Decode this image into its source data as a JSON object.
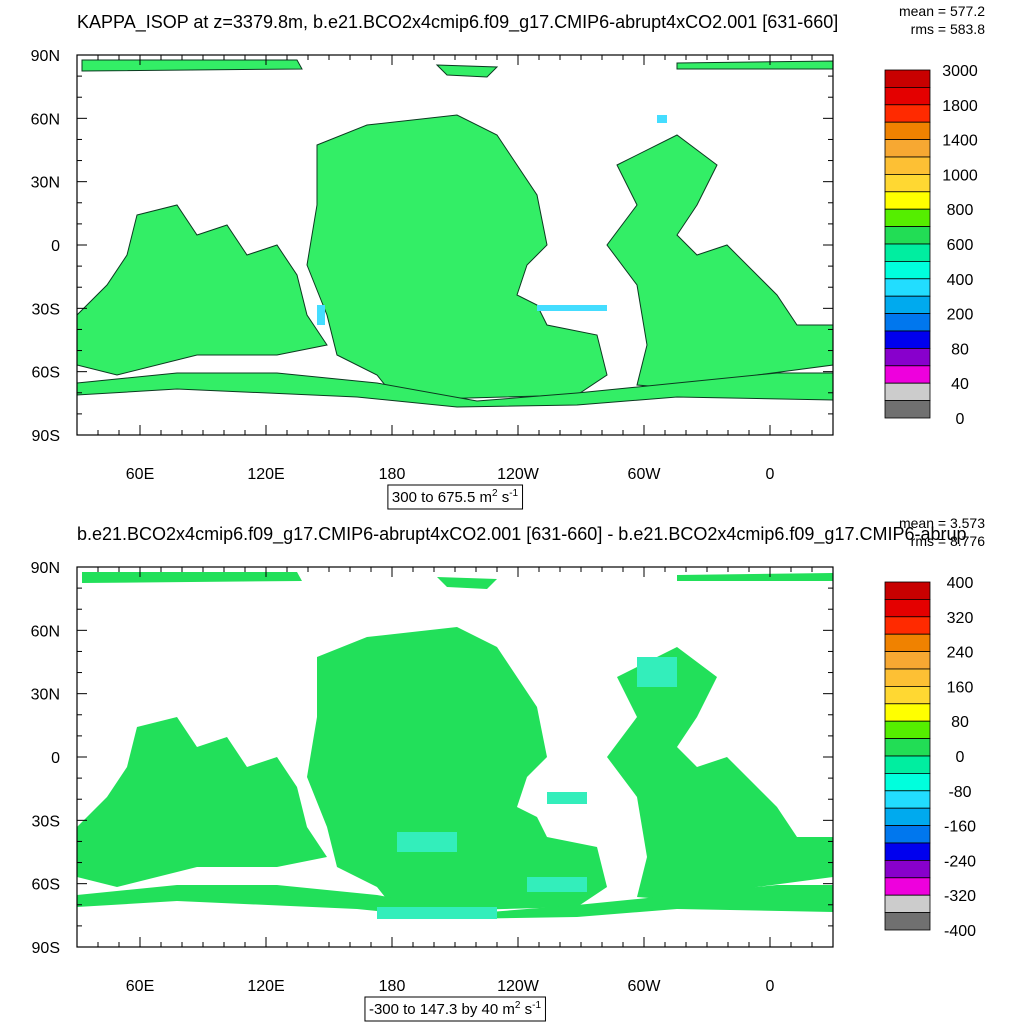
{
  "panels": [
    {
      "title": "KAPPA_ISOP at z=3379.8m, b.e21.BCO2x4cmip6.f09_g17.CMIP6-abrupt4xCO2.001 [631-660]",
      "mean": "mean = 577.2",
      "rms": "rms = 583.8",
      "lat_labels": [
        "90N",
        "60N",
        "30N",
        "0",
        "30S",
        "60S",
        "90S"
      ],
      "lon_labels": [
        "60E",
        "120E",
        "180",
        "120W",
        "60W",
        "0"
      ],
      "colorbar": {
        "colors": [
          "#c80000",
          "#e40000",
          "#ff2a00",
          "#f08200",
          "#f7a832",
          "#fdc034",
          "#ffd832",
          "#ffff00",
          "#55ee00",
          "#22dd55",
          "#00eea0",
          "#00ffdd",
          "#22ddff",
          "#00aaee",
          "#0077ee",
          "#0000ee",
          "#8800cc",
          "#ee00dd",
          "#cccccc",
          "#707070"
        ],
        "labels": [
          "3000",
          "1800",
          "1400",
          "1000",
          "800",
          "600",
          "400",
          "200",
          "80",
          "40",
          "0"
        ]
      },
      "range": {
        "text": "300 to 675.5 m",
        "sup1": "2",
        "mid": " s",
        "sup2": "-1"
      }
    },
    {
      "title": "b.e21.BCO2x4cmip6.f09_g17.CMIP6-abrupt4xCO2.001 [631-660] - b.e21.BCO2x4cmip6.f09_g17.CMIP6-abrup",
      "mean": "mean = 3.573",
      "rms": "rms = 8.776",
      "lat_labels": [
        "90N",
        "60N",
        "30N",
        "0",
        "30S",
        "60S",
        "90S"
      ],
      "lon_labels": [
        "60E",
        "120E",
        "180",
        "120W",
        "60W",
        "0"
      ],
      "colorbar": {
        "colors": [
          "#c80000",
          "#e40000",
          "#ff2a00",
          "#f08200",
          "#f7a832",
          "#fdc034",
          "#ffd832",
          "#ffff00",
          "#55ee00",
          "#22dd55",
          "#00eea0",
          "#00ffdd",
          "#22ddff",
          "#00aaee",
          "#0077ee",
          "#0000ee",
          "#8800cc",
          "#ee00dd",
          "#cccccc",
          "#707070"
        ],
        "labels": [
          "400",
          "320",
          "240",
          "160",
          "80",
          "0",
          "-80",
          "-160",
          "-240",
          "-320",
          "-400"
        ]
      },
      "range": {
        "text": "-300 to 147.3 by 40 m",
        "sup1": "2",
        "mid": " s",
        "sup2": "-1"
      }
    }
  ]
}
